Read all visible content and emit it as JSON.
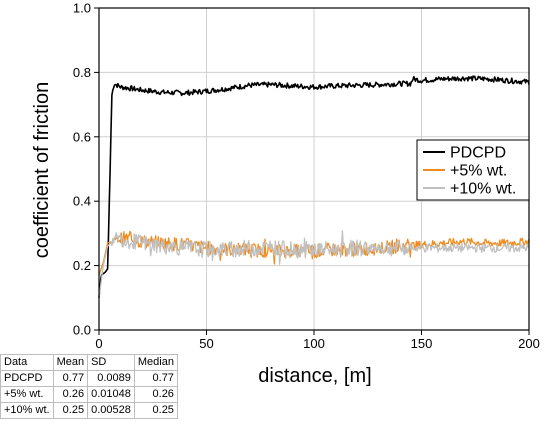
{
  "chart_data": {
    "type": "line",
    "xlabel": "distance, [m]",
    "ylabel": "coefficient of friction",
    "xlim": [
      0,
      200
    ],
    "ylim": [
      0,
      1.0
    ],
    "xticks": [
      "0",
      "50",
      "100",
      "150",
      "200"
    ],
    "yticks": [
      "0.0",
      "0.2",
      "0.4",
      "0.6",
      "0.8",
      "1.0"
    ],
    "grid": true,
    "legend_position": "right",
    "series": [
      {
        "name": "PDCPD",
        "color": "#000000",
        "points": [
          [
            0,
            0.1
          ],
          [
            1,
            0.17
          ],
          [
            2,
            0.175
          ],
          [
            3,
            0.18
          ],
          [
            4,
            0.19
          ],
          [
            5,
            0.45
          ],
          [
            6,
            0.73
          ],
          [
            7,
            0.765
          ],
          [
            10,
            0.755
          ],
          [
            15,
            0.75
          ],
          [
            20,
            0.745
          ],
          [
            30,
            0.738
          ],
          [
            40,
            0.736
          ],
          [
            50,
            0.742
          ],
          [
            60,
            0.75
          ],
          [
            70,
            0.76
          ],
          [
            80,
            0.762
          ],
          [
            90,
            0.758
          ],
          [
            100,
            0.755
          ],
          [
            110,
            0.758
          ],
          [
            120,
            0.76
          ],
          [
            130,
            0.762
          ],
          [
            140,
            0.765
          ],
          [
            145,
            0.765
          ],
          [
            146,
            0.78
          ],
          [
            150,
            0.775
          ],
          [
            160,
            0.78
          ],
          [
            170,
            0.782
          ],
          [
            180,
            0.78
          ],
          [
            190,
            0.775
          ],
          [
            200,
            0.77
          ]
        ]
      },
      {
        "name": "+5% wt.",
        "color": "#f08c1e",
        "points": [
          [
            0,
            0.17
          ],
          [
            2,
            0.21
          ],
          [
            4,
            0.27
          ],
          [
            8,
            0.28
          ],
          [
            12,
            0.285
          ],
          [
            20,
            0.275
          ],
          [
            30,
            0.27
          ],
          [
            40,
            0.265
          ],
          [
            50,
            0.255
          ],
          [
            60,
            0.25
          ],
          [
            70,
            0.25
          ],
          [
            80,
            0.245
          ],
          [
            90,
            0.245
          ],
          [
            100,
            0.245
          ],
          [
            110,
            0.25
          ],
          [
            120,
            0.25
          ],
          [
            130,
            0.255
          ],
          [
            140,
            0.26
          ],
          [
            150,
            0.265
          ],
          [
            160,
            0.27
          ],
          [
            170,
            0.275
          ],
          [
            180,
            0.27
          ],
          [
            190,
            0.27
          ],
          [
            200,
            0.275
          ]
        ]
      },
      {
        "name": "+10% wt.",
        "color": "#c0c0c0",
        "points": [
          [
            0,
            0.1
          ],
          [
            2,
            0.2
          ],
          [
            4,
            0.26
          ],
          [
            8,
            0.29
          ],
          [
            12,
            0.28
          ],
          [
            20,
            0.27
          ],
          [
            30,
            0.26
          ],
          [
            40,
            0.255
          ],
          [
            50,
            0.25
          ],
          [
            60,
            0.25
          ],
          [
            70,
            0.255
          ],
          [
            80,
            0.255
          ],
          [
            90,
            0.25
          ],
          [
            100,
            0.25
          ],
          [
            110,
            0.25
          ],
          [
            120,
            0.255
          ],
          [
            130,
            0.255
          ],
          [
            140,
            0.255
          ],
          [
            150,
            0.255
          ],
          [
            160,
            0.255
          ],
          [
            170,
            0.255
          ],
          [
            180,
            0.255
          ],
          [
            190,
            0.255
          ],
          [
            200,
            0.255
          ]
        ]
      }
    ]
  },
  "stats_table": {
    "header": [
      "Data",
      "Mean",
      "SD",
      "Median"
    ],
    "rows": [
      [
        "PDCPD",
        "0.77",
        "0.0089",
        "0.77"
      ],
      [
        "+5% wt.",
        "0.26",
        "0.01048",
        "0.26"
      ],
      [
        "+10% wt.",
        "0.25",
        "0.00528",
        "0.25"
      ]
    ]
  }
}
